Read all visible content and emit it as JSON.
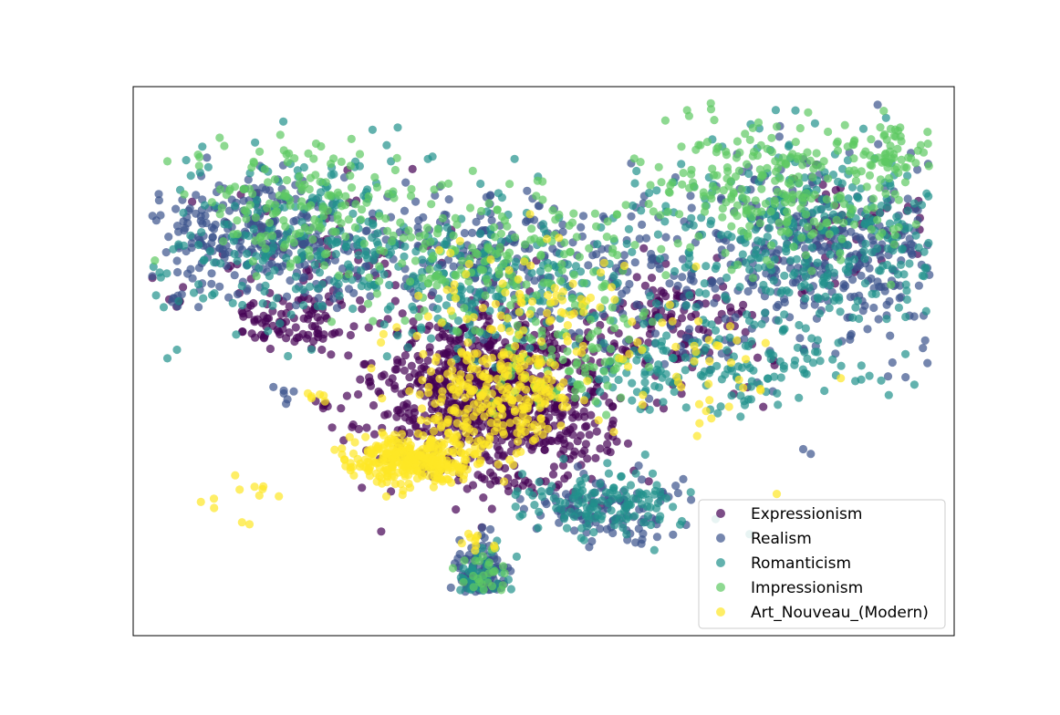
{
  "chart_data": {
    "type": "scatter",
    "title": "",
    "xlabel": "",
    "ylabel": "",
    "axis_ticks_visible": false,
    "grid": false,
    "xlim": [
      0,
      100
    ],
    "ylim": [
      0,
      100
    ],
    "legend": {
      "position": "bottom-right",
      "entries": [
        {
          "name": "Expressionism",
          "color": "#440154"
        },
        {
          "name": "Realism",
          "color": "#3b528b"
        },
        {
          "name": "Romanticism",
          "color": "#21918c"
        },
        {
          "name": "Impressionism",
          "color": "#5ec962"
        },
        {
          "name": "Art_Nouveau_(Modern)",
          "color": "#fde725"
        }
      ]
    },
    "marker_alpha": 0.7,
    "series": [
      {
        "name": "Expressionism",
        "color": "#440154",
        "clusters": [
          {
            "cx": 44.0,
            "cy": 43.0,
            "sx": 7.0,
            "sy": 8.0,
            "n": 900
          },
          {
            "cx": 20.0,
            "cy": 58.0,
            "sx": 4.0,
            "sy": 3.0,
            "n": 90
          },
          {
            "cx": 66.0,
            "cy": 57.0,
            "sx": 5.0,
            "sy": 6.0,
            "n": 120
          },
          {
            "cx": 22.0,
            "cy": 70.0,
            "sx": 8.0,
            "sy": 7.0,
            "n": 60
          },
          {
            "cx": 88.0,
            "cy": 75.0,
            "sx": 5.0,
            "sy": 5.0,
            "n": 50
          },
          {
            "cx": 5.0,
            "cy": 61.0,
            "sx": 0.6,
            "sy": 0.6,
            "n": 4
          },
          {
            "cx": 22.5,
            "cy": 42.0,
            "sx": 0.6,
            "sy": 0.6,
            "n": 5
          }
        ]
      },
      {
        "name": "Realism",
        "color": "#3b528b",
        "clusters": [
          {
            "cx": 14.0,
            "cy": 73.0,
            "sx": 7.0,
            "sy": 6.0,
            "n": 260
          },
          {
            "cx": 85.0,
            "cy": 70.0,
            "sx": 9.0,
            "sy": 9.0,
            "n": 350
          },
          {
            "cx": 43.0,
            "cy": 70.0,
            "sx": 10.0,
            "sy": 6.0,
            "n": 220
          },
          {
            "cx": 42.5,
            "cy": 8.0,
            "sx": 1.5,
            "sy": 4.0,
            "n": 120
          },
          {
            "cx": 58.0,
            "cy": 23.0,
            "sx": 5.0,
            "sy": 3.0,
            "n": 110
          },
          {
            "cx": 65.0,
            "cy": 60.0,
            "sx": 6.0,
            "sy": 8.0,
            "n": 80
          },
          {
            "cx": 5.0,
            "cy": 61.0,
            "sx": 0.7,
            "sy": 0.7,
            "n": 6
          },
          {
            "cx": 18.0,
            "cy": 44.0,
            "sx": 0.7,
            "sy": 0.9,
            "n": 6
          }
        ]
      },
      {
        "name": "Romanticism",
        "color": "#21918c",
        "clusters": [
          {
            "cx": 20.0,
            "cy": 72.0,
            "sx": 9.0,
            "sy": 8.0,
            "n": 220
          },
          {
            "cx": 82.0,
            "cy": 72.0,
            "sx": 10.0,
            "sy": 10.0,
            "n": 330
          },
          {
            "cx": 64.0,
            "cy": 47.0,
            "sx": 4.0,
            "sy": 4.0,
            "n": 60
          },
          {
            "cx": 58.0,
            "cy": 24.0,
            "sx": 5.0,
            "sy": 3.0,
            "n": 130
          },
          {
            "cx": 44.0,
            "cy": 66.0,
            "sx": 9.0,
            "sy": 7.0,
            "n": 200
          },
          {
            "cx": 42.5,
            "cy": 10.0,
            "sx": 1.5,
            "sy": 3.0,
            "n": 40
          },
          {
            "cx": 75.0,
            "cy": 48.0,
            "sx": 7.0,
            "sy": 4.0,
            "n": 80
          }
        ]
      },
      {
        "name": "Impressionism",
        "color": "#5ec962",
        "clusters": [
          {
            "cx": 22.0,
            "cy": 78.0,
            "sx": 7.0,
            "sy": 6.0,
            "n": 160
          },
          {
            "cx": 78.0,
            "cy": 82.0,
            "sx": 9.0,
            "sy": 7.0,
            "n": 250
          },
          {
            "cx": 45.0,
            "cy": 68.0,
            "sx": 9.0,
            "sy": 7.0,
            "n": 180
          },
          {
            "cx": 52.0,
            "cy": 50.0,
            "sx": 5.0,
            "sy": 5.0,
            "n": 90
          },
          {
            "cx": 92.0,
            "cy": 88.0,
            "sx": 3.0,
            "sy": 3.0,
            "n": 50
          },
          {
            "cx": 42.5,
            "cy": 12.0,
            "sx": 1.6,
            "sy": 2.5,
            "n": 25
          }
        ]
      },
      {
        "name": "Art_Nouveau_(Modern)",
        "color": "#fde725",
        "clusters": [
          {
            "cx": 34.0,
            "cy": 32.0,
            "sx": 4.0,
            "sy": 2.2,
            "n": 320
          },
          {
            "cx": 44.0,
            "cy": 44.0,
            "sx": 5.0,
            "sy": 5.0,
            "n": 260
          },
          {
            "cx": 48.0,
            "cy": 60.0,
            "sx": 8.0,
            "sy": 6.0,
            "n": 80
          },
          {
            "cx": 14.0,
            "cy": 26.0,
            "sx": 2.5,
            "sy": 3.0,
            "n": 12
          },
          {
            "cx": 70.0,
            "cy": 48.0,
            "sx": 6.0,
            "sy": 6.0,
            "n": 40
          },
          {
            "cx": 42.5,
            "cy": 17.0,
            "sx": 1.2,
            "sy": 1.2,
            "n": 10
          },
          {
            "cx": 22.5,
            "cy": 43.0,
            "sx": 0.8,
            "sy": 0.8,
            "n": 6
          }
        ]
      }
    ]
  }
}
